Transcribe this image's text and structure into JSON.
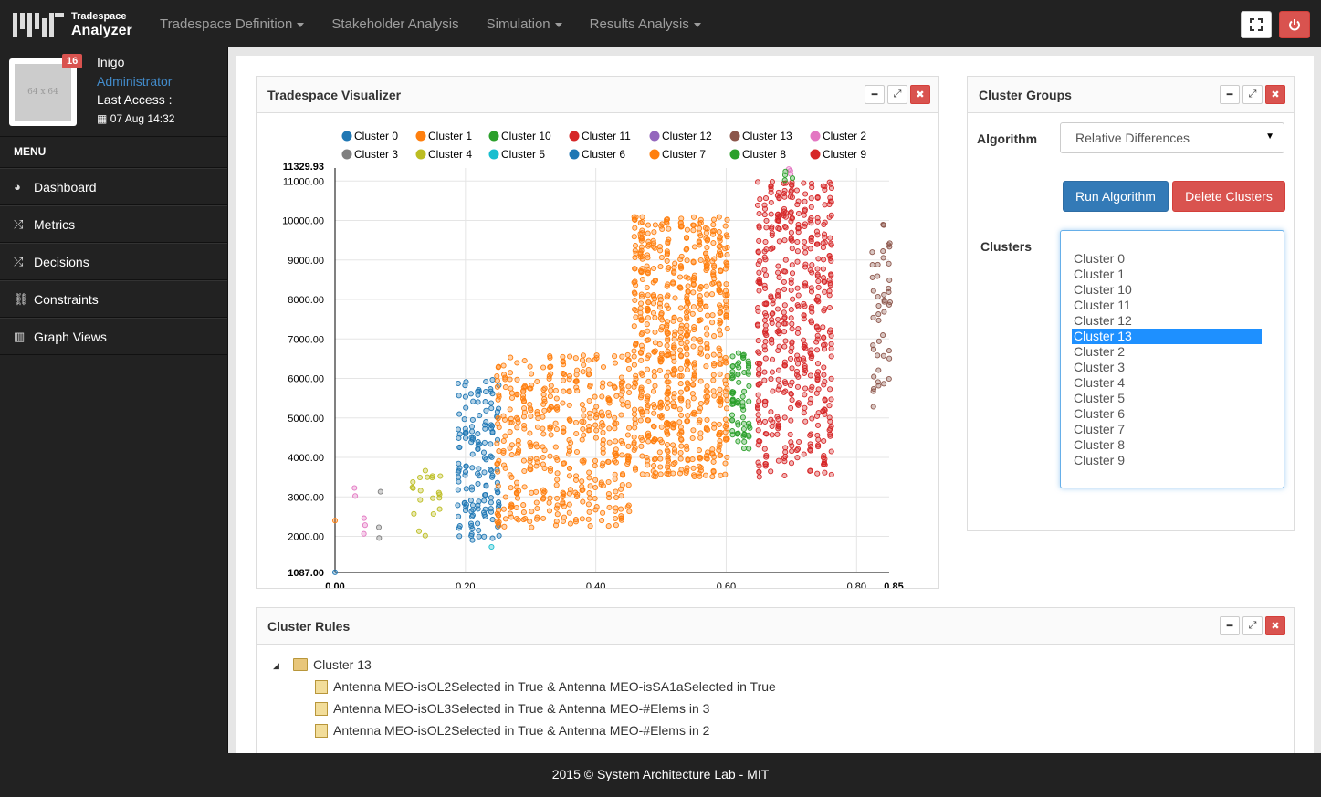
{
  "navbar": {
    "brand_small": "Tradespace",
    "brand_big": "Analyzer",
    "items": [
      {
        "label": "Tradespace Definition",
        "dropdown": true
      },
      {
        "label": "Stakeholder Analysis",
        "dropdown": false
      },
      {
        "label": "Simulation",
        "dropdown": true
      },
      {
        "label": "Results Analysis",
        "dropdown": true
      }
    ],
    "right_buttons": [
      "fullscreen-icon",
      "power-icon"
    ]
  },
  "profile": {
    "avatar_text": "64 x 64",
    "badge": "16",
    "name": "Inigo",
    "role": "Administrator",
    "last_access_label": "Last Access :",
    "last_access_date": "07 Aug 14:32"
  },
  "sidebar": {
    "menu_title": "MENU",
    "items": [
      {
        "label": "Dashboard",
        "icon": "dashboard-icon"
      },
      {
        "label": "Metrics",
        "icon": "shuffle-icon"
      },
      {
        "label": "Decisions",
        "icon": "shuffle-icon"
      },
      {
        "label": "Constraints",
        "icon": "link-icon"
      },
      {
        "label": "Graph Views",
        "icon": "bar-chart-icon"
      }
    ]
  },
  "visualizer": {
    "title": "Tradespace Visualizer"
  },
  "chart_data": {
    "type": "scatter",
    "title": "",
    "xlabel": "",
    "ylabel": "",
    "xlim": [
      0.0,
      0.85
    ],
    "ylim": [
      1087.0,
      11329.93
    ],
    "x_ticks": [
      "0.00",
      "0.20",
      "0.40",
      "0.60",
      "0.80",
      "0.85"
    ],
    "y_ticks": [
      "1087.00",
      "2000.00",
      "3000.00",
      "4000.00",
      "5000.00",
      "6000.00",
      "7000.00",
      "8000.00",
      "9000.00",
      "10000.00",
      "11000.00",
      "11329.93"
    ],
    "grid": true,
    "legend_position": "top",
    "series": [
      {
        "name": "Cluster 0",
        "color": "#1f77b4",
        "clusters": [
          {
            "x": [
              0.19,
              0.25
            ],
            "y": [
              1800,
              6000
            ],
            "n": 150
          },
          {
            "x": [
              0.0,
              0.0
            ],
            "y": [
              1087,
              1100
            ],
            "n": 1
          }
        ]
      },
      {
        "name": "Cluster 1",
        "color": "#ff7f0e",
        "clusters": [
          {
            "x": [
              0.0,
              0.0
            ],
            "y": [
              2400,
              2400
            ],
            "n": 1
          }
        ]
      },
      {
        "name": "Cluster 10",
        "color": "#2ca02c",
        "clusters": [
          {
            "x": [
              0.61,
              0.635
            ],
            "y": [
              4200,
              6700
            ],
            "n": 70
          }
        ]
      },
      {
        "name": "Cluster 11",
        "color": "#d62728",
        "clusters": [
          {
            "x": [
              0.65,
              0.76
            ],
            "y": [
              3500,
              11000
            ],
            "n": 500
          }
        ]
      },
      {
        "name": "Cluster 12",
        "color": "#9467bd",
        "clusters": []
      },
      {
        "name": "Cluster 13",
        "color": "#8c564b",
        "clusters": [
          {
            "x": [
              0.825,
              0.85
            ],
            "y": [
              5200,
              10000
            ],
            "n": 45
          }
        ]
      },
      {
        "name": "Cluster 2",
        "color": "#e377c2",
        "clusters": [
          {
            "x": [
              0.03,
              0.045
            ],
            "y": [
              1900,
              3300
            ],
            "n": 5
          },
          {
            "x": [
              0.695,
              0.7
            ],
            "y": [
              11000,
              11330
            ],
            "n": 3
          }
        ]
      },
      {
        "name": "Cluster 3",
        "color": "#7f7f7f",
        "clusters": [
          {
            "x": [
              0.065,
              0.07
            ],
            "y": [
              1900,
              3200
            ],
            "n": 3
          }
        ]
      },
      {
        "name": "Cluster 4",
        "color": "#bcbd22",
        "clusters": [
          {
            "x": [
              0.12,
              0.16
            ],
            "y": [
              2000,
              3700
            ],
            "n": 20
          }
        ]
      },
      {
        "name": "Cluster 5",
        "color": "#17becf",
        "clusters": [
          {
            "x": [
              0.24,
              0.24
            ],
            "y": [
              1700,
              1800
            ],
            "n": 1
          }
        ]
      },
      {
        "name": "Cluster 6",
        "color": "#1f77b4",
        "clusters": []
      },
      {
        "name": "Cluster 7",
        "color": "#ff7f0e",
        "clusters": [
          {
            "x": [
              0.25,
              0.45
            ],
            "y": [
              2200,
              6600
            ],
            "n": 450
          },
          {
            "x": [
              0.46,
              0.6
            ],
            "y": [
              3500,
              10100
            ],
            "n": 700
          }
        ]
      },
      {
        "name": "Cluster 8",
        "color": "#2ca02c",
        "clusters": [
          {
            "x": [
              0.68,
              0.7
            ],
            "y": [
              11000,
              11300
            ],
            "n": 4
          }
        ]
      },
      {
        "name": "Cluster 9",
        "color": "#d62728",
        "clusters": []
      }
    ]
  },
  "cluster_groups": {
    "title": "Cluster Groups",
    "algorithm_label": "Algorithm",
    "algorithm_value": "Relative Differences",
    "run_button": "Run Algorithm",
    "delete_button": "Delete Clusters",
    "clusters_label": "Clusters",
    "options": [
      "Cluster 0",
      "Cluster 1",
      "Cluster 10",
      "Cluster 11",
      "Cluster 12",
      "Cluster 13",
      "Cluster 2",
      "Cluster 3",
      "Cluster 4",
      "Cluster 5",
      "Cluster 6",
      "Cluster 7",
      "Cluster 8",
      "Cluster 9"
    ],
    "selected": "Cluster 13"
  },
  "cluster_rules": {
    "title": "Cluster Rules",
    "root": "Cluster 13",
    "rules": [
      "Antenna MEO-isOL2Selected in True & Antenna MEO-isSA1aSelected in True",
      "Antenna MEO-isOL3Selected in True & Antenna MEO-#Elems in 3",
      "Antenna MEO-isOL2Selected in True & Antenna MEO-#Elems in 2"
    ]
  },
  "footer": {
    "text": "2015 © System Architecture Lab - MIT"
  }
}
